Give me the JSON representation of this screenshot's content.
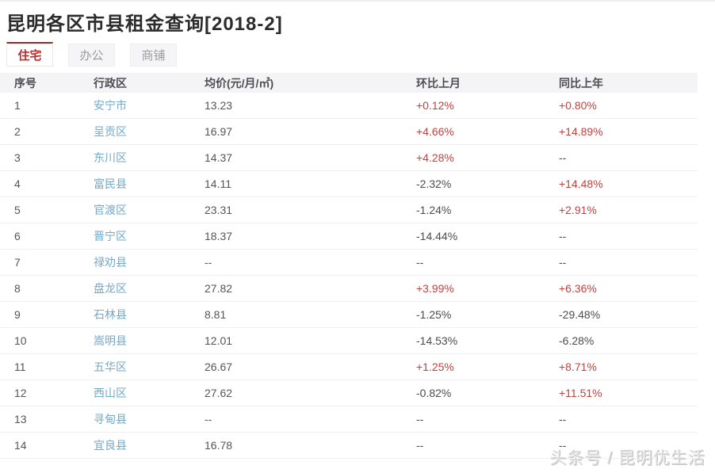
{
  "page": {
    "title": "昆明各区市县租金查询[2018-2]",
    "watermark": "头条号 / 昆明优生活"
  },
  "tabs": [
    {
      "label": "住宅",
      "active": true
    },
    {
      "label": "办公",
      "active": false
    },
    {
      "label": "商铺",
      "active": false
    }
  ],
  "table": {
    "headers": [
      "序号",
      "行政区",
      "均价(元/月/㎡)",
      "环比上月",
      "同比上年"
    ],
    "rows": [
      {
        "no": "1",
        "district": "安宁市",
        "price": "13.23",
        "mom": "+0.12%",
        "yoy": "+0.80%"
      },
      {
        "no": "2",
        "district": "呈贡区",
        "price": "16.97",
        "mom": "+4.66%",
        "yoy": "+14.89%"
      },
      {
        "no": "3",
        "district": "东川区",
        "price": "14.37",
        "mom": "+4.28%",
        "yoy": "--"
      },
      {
        "no": "4",
        "district": "富民县",
        "price": "14.11",
        "mom": "-2.32%",
        "yoy": "+14.48%"
      },
      {
        "no": "5",
        "district": "官渡区",
        "price": "23.31",
        "mom": "-1.24%",
        "yoy": "+2.91%"
      },
      {
        "no": "6",
        "district": "晋宁区",
        "price": "18.37",
        "mom": "-14.44%",
        "yoy": "--"
      },
      {
        "no": "7",
        "district": "禄劝县",
        "price": "--",
        "mom": "--",
        "yoy": "--"
      },
      {
        "no": "8",
        "district": "盘龙区",
        "price": "27.82",
        "mom": "+3.99%",
        "yoy": "+6.36%"
      },
      {
        "no": "9",
        "district": "石林县",
        "price": "8.81",
        "mom": "-1.25%",
        "yoy": "-29.48%"
      },
      {
        "no": "10",
        "district": "嵩明县",
        "price": "12.01",
        "mom": "-14.53%",
        "yoy": "-6.28%"
      },
      {
        "no": "11",
        "district": "五华区",
        "price": "26.67",
        "mom": "+1.25%",
        "yoy": "+8.71%"
      },
      {
        "no": "12",
        "district": "西山区",
        "price": "27.62",
        "mom": "-0.82%",
        "yoy": "+11.51%"
      },
      {
        "no": "13",
        "district": "寻甸县",
        "price": "--",
        "mom": "--",
        "yoy": "--"
      },
      {
        "no": "14",
        "district": "宜良县",
        "price": "16.78",
        "mom": "--",
        "yoy": "--"
      }
    ]
  },
  "colors": {
    "accent_red": "#b52f2f",
    "tab_active_border": "#9e2626",
    "district_link_blue": "#72aacb",
    "positive_pct": "#bd4340",
    "negative_pct": "#4c4c4c",
    "header_bg": "#f4f4f6",
    "divider": "#efefef",
    "watermark_gray": "#dadada"
  }
}
